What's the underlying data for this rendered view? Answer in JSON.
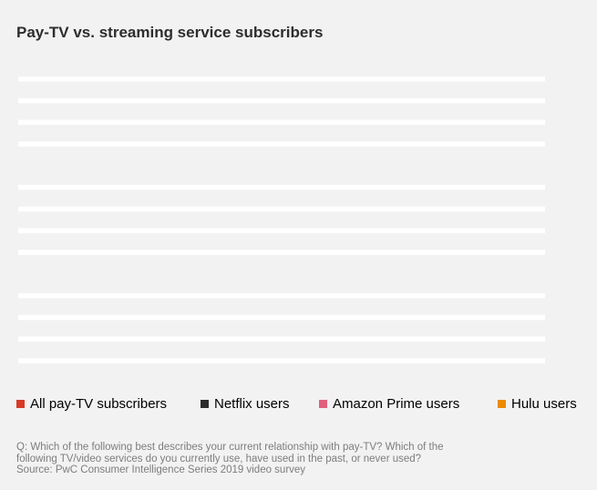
{
  "chart_data": {
    "type": "bar",
    "title": "Pay-TV vs. streaming service subscribers",
    "categories": [],
    "series": [
      {
        "name": "All pay-TV subscribers",
        "color": "#d93a26",
        "values": []
      },
      {
        "name": "Netflix users",
        "color": "#2d2d2d",
        "values": []
      },
      {
        "name": "Amazon Prime users",
        "color": "#e0607e",
        "values": []
      },
      {
        "name": "Hulu users",
        "color": "#eb8c00",
        "values": []
      }
    ],
    "groups": 3,
    "bars_per_group": 4,
    "legend_position": "bottom",
    "grid": false
  },
  "footer": {
    "question_line1": "Q: Which of the following best describes your current relationship with pay-TV? Which of the",
    "question_line2": "following TV/video services do you currently use, have used in the past, or never used?",
    "source": "Source: PwC Consumer Intelligence Series 2019 video survey"
  }
}
